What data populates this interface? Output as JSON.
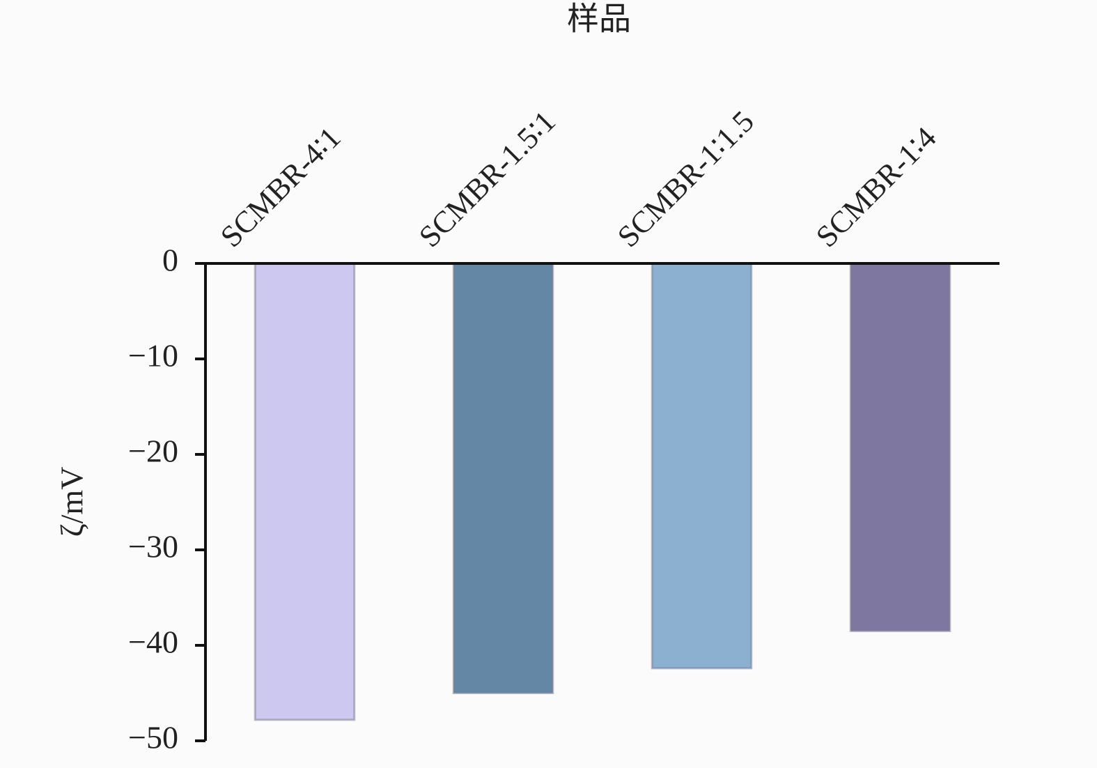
{
  "chart_data": {
    "type": "bar",
    "x_label": "样品",
    "y_label": "ζ/mV",
    "categories": [
      "SCMBR-4∶1",
      "SCMBR-1.5∶1",
      "SCMBR-1∶1.5",
      "SCMBR-1∶4"
    ],
    "values": [
      -47.8,
      -45.0,
      -42.4,
      -38.5
    ],
    "colors": [
      "#cdc8f0",
      "#6587a6",
      "#8cb0cf",
      "#7e78a0"
    ],
    "ylim": [
      -50,
      0
    ],
    "yticks": [
      0,
      {
        "value": -10,
        "label": "−10"
      },
      {
        "value": -20,
        "label": "−20"
      },
      {
        "value": -30,
        "label": "−30"
      },
      {
        "value": -40,
        "label": "−40"
      },
      {
        "value": -50,
        "label": "−50"
      }
    ],
    "grid": false
  }
}
